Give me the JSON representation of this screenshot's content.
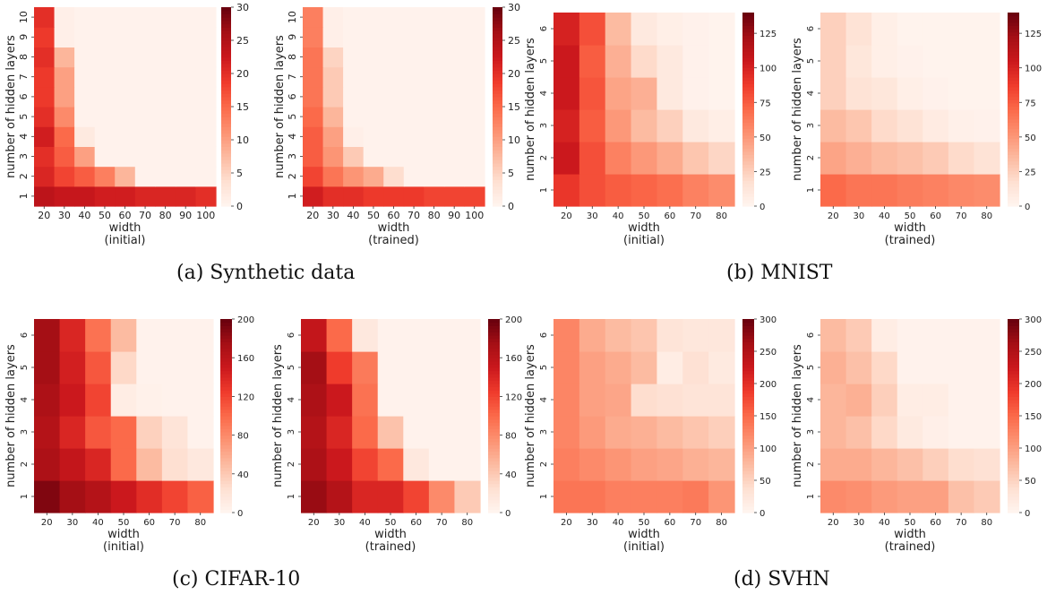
{
  "captions": [
    "(a) Synthetic data",
    "(b) MNIST",
    "(c) CIFAR-10",
    "(d) SVHN"
  ],
  "palette": [
    "#fff5f0",
    "#fee0d2",
    "#fcbba1",
    "#fc9272",
    "#fb6a4a",
    "#ef3b2c",
    "#cb181d",
    "#a50f15",
    "#67000d"
  ],
  "chart_data": [
    {
      "type": "heatmap",
      "panel": "a-initial",
      "xlabel": "width",
      "xsublabel": "(initial)",
      "ylabel": "number of hidden layers",
      "x": [
        20,
        30,
        40,
        50,
        60,
        70,
        80,
        90,
        100
      ],
      "y": [
        1,
        2,
        3,
        4,
        5,
        6,
        7,
        8,
        9,
        10
      ],
      "vmin": 0,
      "vmax": 30,
      "cbar_ticks": [
        0,
        5,
        10,
        15,
        20,
        25,
        30
      ],
      "values": [
        [
          24,
          23,
          23,
          22,
          22,
          21,
          21,
          21,
          20
        ],
        [
          21,
          18,
          16,
          13,
          8,
          0.5,
          0.5,
          0.5,
          0.5
        ],
        [
          20,
          16,
          10,
          0.5,
          0.5,
          0.5,
          0.5,
          0.5,
          0.5
        ],
        [
          22,
          15,
          2,
          0.5,
          0.5,
          0.5,
          0.5,
          0.5,
          0.5
        ],
        [
          20,
          12,
          0.5,
          0.5,
          0.5,
          0.5,
          0.5,
          0.5,
          0.5
        ],
        [
          19,
          10,
          0.5,
          0.5,
          0.5,
          0.5,
          0.5,
          0.5,
          0.5
        ],
        [
          19,
          10,
          0.5,
          0.5,
          0.5,
          0.5,
          0.5,
          0.5,
          0.5
        ],
        [
          20,
          8,
          0.5,
          0.5,
          0.5,
          0.5,
          0.5,
          0.5,
          0.5
        ],
        [
          19,
          1,
          0.5,
          0.5,
          0.5,
          0.5,
          0.5,
          0.5,
          0.5
        ],
        [
          20,
          1,
          0.5,
          0.5,
          0.5,
          0.5,
          0.5,
          0.5,
          0.5
        ]
      ]
    },
    {
      "type": "heatmap",
      "panel": "a-trained",
      "xlabel": "width",
      "xsublabel": "(trained)",
      "ylabel": "number of hidden layers",
      "x": [
        20,
        30,
        40,
        50,
        60,
        70,
        80,
        90,
        100
      ],
      "y": [
        1,
        2,
        3,
        4,
        5,
        6,
        7,
        8,
        9,
        10
      ],
      "vmin": 0,
      "vmax": 30,
      "cbar_ticks": [
        0,
        5,
        10,
        15,
        20,
        25,
        30
      ],
      "values": [
        [
          22,
          20,
          20,
          19,
          19,
          19,
          18,
          18,
          18
        ],
        [
          18,
          14,
          11,
          9,
          4,
          0.5,
          0.5,
          0.5,
          0.5
        ],
        [
          16,
          11,
          6,
          0.5,
          0.5,
          0.5,
          0.5,
          0.5,
          0.5
        ],
        [
          16,
          10,
          1,
          0.5,
          0.5,
          0.5,
          0.5,
          0.5,
          0.5
        ],
        [
          15,
          8,
          0.5,
          0.5,
          0.5,
          0.5,
          0.5,
          0.5,
          0.5
        ],
        [
          14,
          6,
          0.5,
          0.5,
          0.5,
          0.5,
          0.5,
          0.5,
          0.5
        ],
        [
          14,
          6,
          0.5,
          0.5,
          0.5,
          0.5,
          0.5,
          0.5,
          0.5
        ],
        [
          14,
          5,
          0.5,
          0.5,
          0.5,
          0.5,
          0.5,
          0.5,
          0.5
        ],
        [
          13,
          1,
          0.5,
          0.5,
          0.5,
          0.5,
          0.5,
          0.5,
          0.5
        ],
        [
          13,
          1,
          0.5,
          0.5,
          0.5,
          0.5,
          0.5,
          0.5,
          0.5
        ]
      ]
    },
    {
      "type": "heatmap",
      "panel": "b-initial",
      "xlabel": "width",
      "xsublabel": "(initial)",
      "ylabel": "number of hidden layers",
      "x": [
        20,
        30,
        40,
        50,
        60,
        70,
        80
      ],
      "y": [
        1,
        2,
        3,
        4,
        5,
        6
      ],
      "vmin": 0,
      "vmax": 140,
      "cbar_ticks": [
        0,
        25,
        50,
        75,
        100,
        125
      ],
      "values": [
        [
          90,
          80,
          75,
          72,
          68,
          60,
          55
        ],
        [
          105,
          80,
          60,
          50,
          42,
          30,
          22
        ],
        [
          100,
          75,
          50,
          35,
          25,
          10,
          6
        ],
        [
          105,
          78,
          45,
          40,
          10,
          3,
          2
        ],
        [
          105,
          75,
          40,
          20,
          10,
          3,
          2
        ],
        [
          100,
          80,
          35,
          10,
          5,
          3,
          2
        ]
      ]
    },
    {
      "type": "heatmap",
      "panel": "b-trained",
      "xlabel": "width",
      "xsublabel": "(trained)",
      "ylabel": "number of hidden layers",
      "x": [
        20,
        30,
        40,
        50,
        60,
        70,
        80
      ],
      "y": [
        1,
        2,
        3,
        4,
        5,
        6
      ],
      "vmin": 0,
      "vmax": 140,
      "cbar_ticks": [
        0,
        25,
        50,
        75,
        100,
        125
      ],
      "values": [
        [
          70,
          65,
          65,
          62,
          60,
          57,
          55
        ],
        [
          45,
          40,
          35,
          32,
          28,
          20,
          15
        ],
        [
          35,
          30,
          20,
          15,
          8,
          4,
          3
        ],
        [
          25,
          15,
          12,
          5,
          3,
          2,
          2
        ],
        [
          25,
          12,
          5,
          3,
          2,
          2,
          2
        ],
        [
          25,
          15,
          5,
          2,
          2,
          2,
          2
        ]
      ]
    },
    {
      "type": "heatmap",
      "panel": "c-initial",
      "xlabel": "width",
      "xsublabel": "(initial)",
      "ylabel": "number of hidden layers",
      "x": [
        20,
        30,
        40,
        50,
        60,
        70,
        80
      ],
      "y": [
        1,
        2,
        3,
        4,
        5,
        6
      ],
      "vmin": 0,
      "vmax": 200,
      "cbar_ticks": [
        0,
        40,
        80,
        120,
        160,
        200
      ],
      "values": [
        [
          190,
          175,
          165,
          150,
          135,
          120,
          105
        ],
        [
          170,
          155,
          140,
          100,
          50,
          25,
          15
        ],
        [
          165,
          140,
          110,
          100,
          35,
          20,
          3
        ],
        [
          170,
          150,
          120,
          10,
          5,
          3,
          3
        ],
        [
          175,
          145,
          110,
          30,
          3,
          3,
          3
        ],
        [
          175,
          140,
          95,
          50,
          3,
          3,
          3
        ]
      ]
    },
    {
      "type": "heatmap",
      "panel": "c-trained",
      "xlabel": "width",
      "xsublabel": "(trained)",
      "ylabel": "number of hidden layers",
      "x": [
        20,
        30,
        40,
        50,
        60,
        70,
        80
      ],
      "y": [
        1,
        2,
        3,
        4,
        5,
        6
      ],
      "vmin": 0,
      "vmax": 200,
      "cbar_ticks": [
        0,
        40,
        80,
        120,
        160,
        200
      ],
      "values": [
        [
          180,
          165,
          140,
          140,
          120,
          80,
          40
        ],
        [
          170,
          150,
          120,
          100,
          15,
          3,
          3
        ],
        [
          165,
          140,
          100,
          45,
          3,
          3,
          3
        ],
        [
          170,
          150,
          95,
          3,
          3,
          3,
          3
        ],
        [
          175,
          125,
          90,
          3,
          3,
          3,
          3
        ],
        [
          155,
          100,
          15,
          3,
          3,
          3,
          3
        ]
      ]
    },
    {
      "type": "heatmap",
      "panel": "d-initial",
      "xlabel": "width",
      "xsublabel": "(initial)",
      "ylabel": "number of hidden layers",
      "x": [
        20,
        30,
        40,
        50,
        60,
        70,
        80
      ],
      "y": [
        1,
        2,
        3,
        4,
        5,
        6
      ],
      "vmin": 0,
      "vmax": 300,
      "cbar_ticks": [
        0,
        50,
        100,
        150,
        200,
        250,
        300
      ],
      "values": [
        [
          140,
          140,
          130,
          130,
          130,
          135,
          110
        ],
        [
          130,
          120,
          110,
          100,
          95,
          85,
          80
        ],
        [
          125,
          105,
          90,
          85,
          75,
          65,
          55
        ],
        [
          125,
          100,
          95,
          40,
          35,
          30,
          30
        ],
        [
          125,
          100,
          90,
          75,
          15,
          35,
          20
        ],
        [
          125,
          90,
          75,
          65,
          30,
          25,
          25
        ]
      ]
    },
    {
      "type": "heatmap",
      "panel": "d-trained",
      "xlabel": "width",
      "xsublabel": "(trained)",
      "ylabel": "number of hidden layers",
      "x": [
        20,
        30,
        40,
        50,
        60,
        70,
        80
      ],
      "y": [
        1,
        2,
        3,
        4,
        5,
        6
      ],
      "vmin": 0,
      "vmax": 300,
      "cbar_ticks": [
        0,
        50,
        100,
        150,
        200,
        250,
        300
      ],
      "values": [
        [
          120,
          115,
          105,
          100,
          100,
          70,
          60
        ],
        [
          90,
          90,
          80,
          70,
          55,
          40,
          35
        ],
        [
          80,
          70,
          45,
          20,
          10,
          5,
          5
        ],
        [
          80,
          85,
          55,
          15,
          15,
          5,
          5
        ],
        [
          85,
          70,
          45,
          5,
          5,
          5,
          5
        ],
        [
          75,
          60,
          15,
          5,
          5,
          5,
          5
        ]
      ]
    }
  ]
}
